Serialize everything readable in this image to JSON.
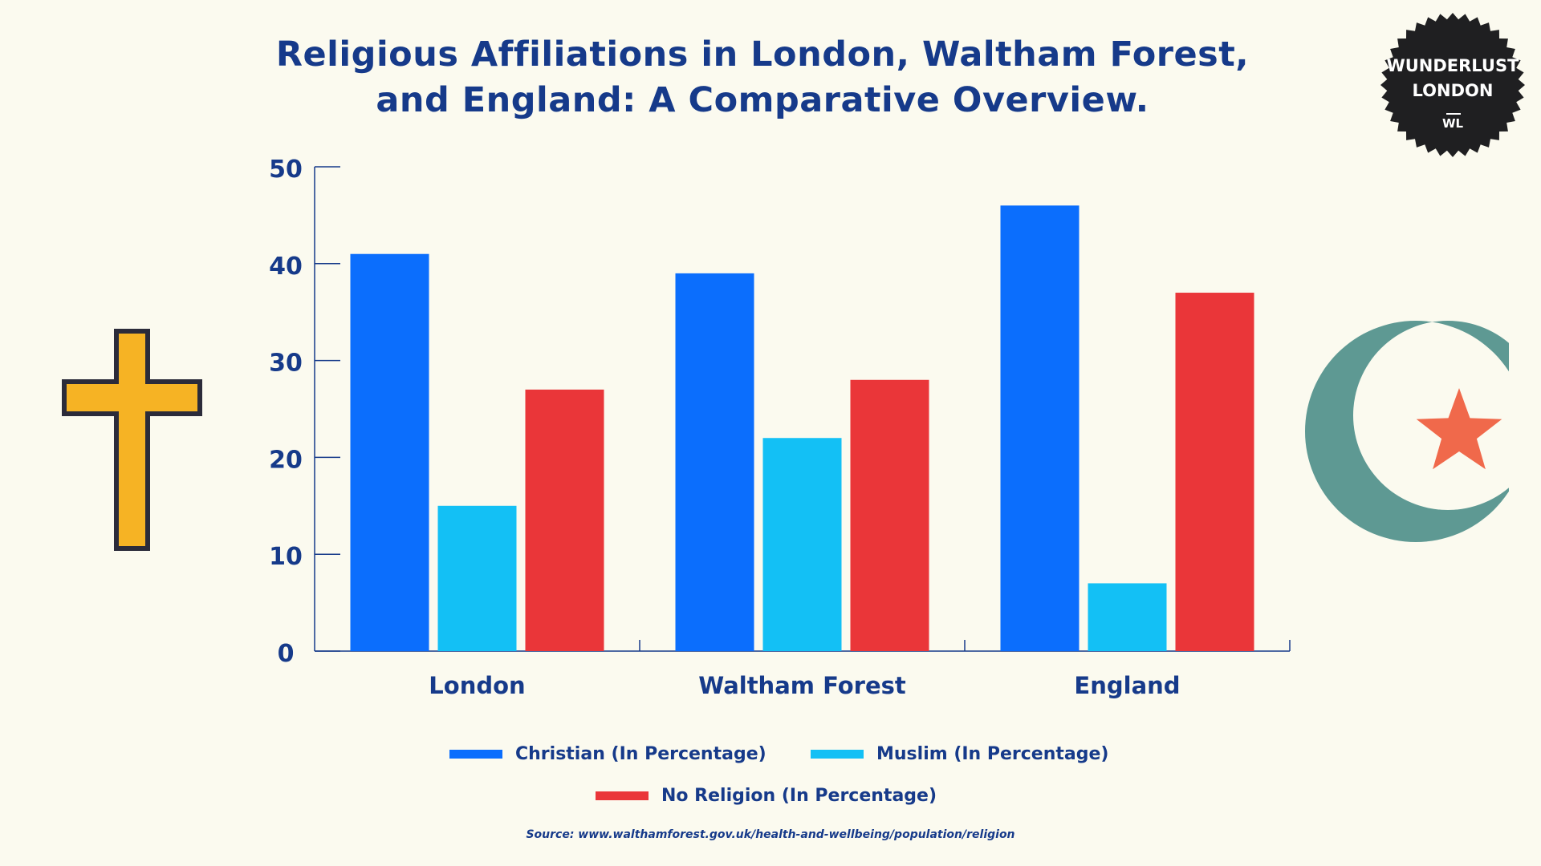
{
  "colors": {
    "christian": "#0b6efd",
    "muslim": "#13c0f5",
    "no_religion": "#ea3639",
    "axis": "#163a8a",
    "text": "#163a8a",
    "cross_fill": "#f6b324",
    "cross_stroke": "#2b2b3a",
    "crescent": "#5e9993",
    "star": "#f0694b",
    "badge": "#1f1f21"
  },
  "badge": {
    "line1": "WUNDERLUST",
    "line2": "LONDON",
    "line3": "WL"
  },
  "icons": {
    "left": "cross-icon",
    "right": "crescent-star-icon"
  },
  "source": "Source: www.walthamforest.gov.uk/health-and-wellbeing/population/religion",
  "chart_data": {
    "type": "bar",
    "title_lines": [
      "Religious Affiliations in London, Waltham Forest,",
      "and England: A Comparative Overview."
    ],
    "categories": [
      "London",
      "Waltham Forest",
      "England"
    ],
    "series": [
      {
        "name": "Christian (In Percentage)",
        "values": [
          41,
          39,
          46
        ]
      },
      {
        "name": "Muslim (In Percentage)",
        "values": [
          15,
          22,
          7
        ]
      },
      {
        "name": "No Religion (In Percentage)",
        "values": [
          27,
          28,
          37
        ]
      }
    ],
    "ylim": [
      0,
      50
    ],
    "yticks": [
      0,
      10,
      20,
      30,
      40,
      50
    ],
    "grid": false,
    "legend_position": "bottom",
    "xlabel": "",
    "ylabel": ""
  }
}
